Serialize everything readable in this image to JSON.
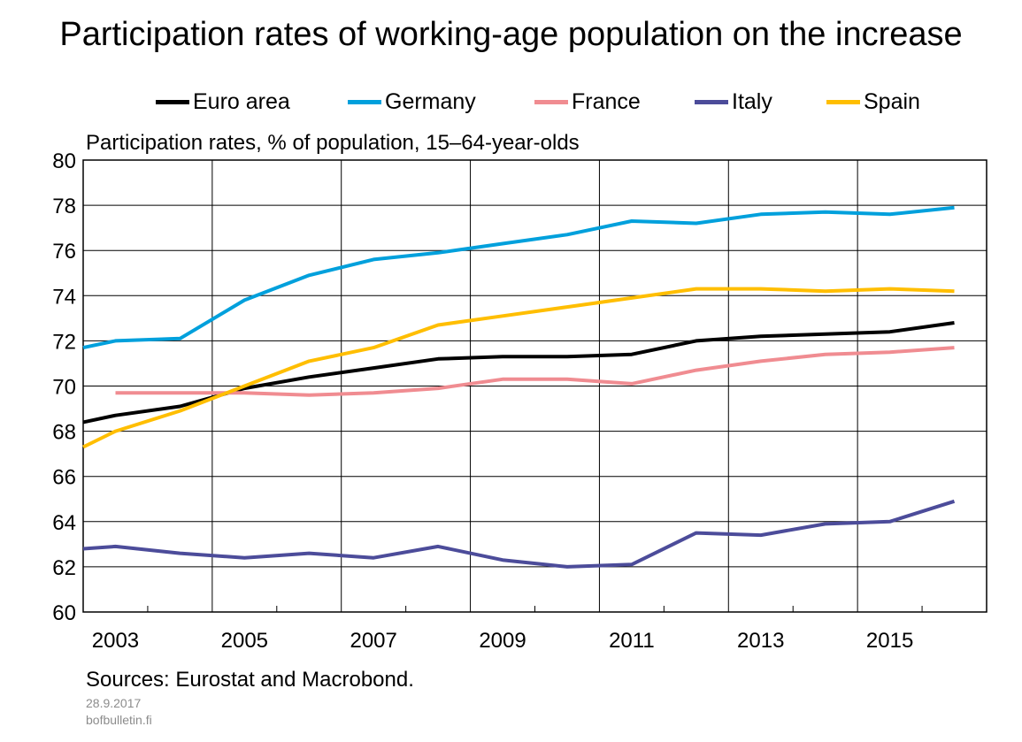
{
  "title": "Participation rates of working-age population on the increase",
  "subtitle": "Participation rates, % of population, 15–64-year-olds",
  "source": "Sources: Eurostat and Macrobond.",
  "date": "28.9.2017",
  "site": "bofbulletin.fi",
  "chart_data": {
    "type": "line",
    "x": [
      2002.5,
      2003,
      2004,
      2005,
      2006,
      2007,
      2008,
      2009,
      2010,
      2011,
      2012,
      2013,
      2014,
      2015,
      2016
    ],
    "xlim": [
      2002.5,
      2016.5
    ],
    "ylim": [
      60,
      80
    ],
    "yticks": [
      60,
      62,
      64,
      66,
      68,
      70,
      72,
      74,
      76,
      78,
      80
    ],
    "xtick_labels": [
      "2003",
      "2005",
      "2007",
      "2009",
      "2011",
      "2013",
      "2015"
    ],
    "grid": true,
    "legend_position": "top",
    "series": [
      {
        "name": "Euro area",
        "color": "#000000",
        "points": [
          [
            2002.5,
            68.4
          ],
          [
            2003,
            68.7
          ],
          [
            2004,
            69.1
          ],
          [
            2005,
            69.9
          ],
          [
            2006,
            70.4
          ],
          [
            2007,
            70.8
          ],
          [
            2008,
            71.2
          ],
          [
            2009,
            71.3
          ],
          [
            2010,
            71.3
          ],
          [
            2011,
            71.4
          ],
          [
            2012,
            72.0
          ],
          [
            2013,
            72.2
          ],
          [
            2014,
            72.3
          ],
          [
            2015,
            72.4
          ],
          [
            2016,
            72.8
          ]
        ]
      },
      {
        "name": "Germany",
        "color": "#00a0dc",
        "points": [
          [
            2002.5,
            71.7
          ],
          [
            2003,
            72.0
          ],
          [
            2004,
            72.1
          ],
          [
            2005,
            73.8
          ],
          [
            2006,
            74.9
          ],
          [
            2007,
            75.6
          ],
          [
            2008,
            75.9
          ],
          [
            2009,
            76.3
          ],
          [
            2010,
            76.7
          ],
          [
            2011,
            77.3
          ],
          [
            2012,
            77.2
          ],
          [
            2013,
            77.6
          ],
          [
            2014,
            77.7
          ],
          [
            2015,
            77.6
          ],
          [
            2016,
            77.9
          ]
        ]
      },
      {
        "name": "France",
        "color": "#f08c91",
        "points": [
          [
            2003,
            69.7
          ],
          [
            2004,
            69.7
          ],
          [
            2005,
            69.7
          ],
          [
            2006,
            69.6
          ],
          [
            2007,
            69.7
          ],
          [
            2008,
            69.9
          ],
          [
            2009,
            70.3
          ],
          [
            2010,
            70.3
          ],
          [
            2011,
            70.1
          ],
          [
            2012,
            70.7
          ],
          [
            2013,
            71.1
          ],
          [
            2014,
            71.4
          ],
          [
            2015,
            71.5
          ],
          [
            2016,
            71.7
          ]
        ]
      },
      {
        "name": "Italy",
        "color": "#4c4c9a",
        "points": [
          [
            2002.5,
            62.8
          ],
          [
            2003,
            62.9
          ],
          [
            2004,
            62.6
          ],
          [
            2005,
            62.4
          ],
          [
            2006,
            62.6
          ],
          [
            2007,
            62.4
          ],
          [
            2008,
            62.9
          ],
          [
            2009,
            62.3
          ],
          [
            2010,
            62.0
          ],
          [
            2011,
            62.1
          ],
          [
            2012,
            63.5
          ],
          [
            2013,
            63.4
          ],
          [
            2014,
            63.9
          ],
          [
            2015,
            64.0
          ],
          [
            2016,
            64.9
          ]
        ]
      },
      {
        "name": "Spain",
        "color": "#ffbe00",
        "points": [
          [
            2002.5,
            67.3
          ],
          [
            2003,
            68.0
          ],
          [
            2004,
            68.9
          ],
          [
            2005,
            70.0
          ],
          [
            2006,
            71.1
          ],
          [
            2007,
            71.7
          ],
          [
            2008,
            72.7
          ],
          [
            2009,
            73.1
          ],
          [
            2010,
            73.5
          ],
          [
            2011,
            73.9
          ],
          [
            2012,
            74.3
          ],
          [
            2013,
            74.3
          ],
          [
            2014,
            74.2
          ],
          [
            2015,
            74.3
          ],
          [
            2016,
            74.2
          ]
        ]
      }
    ]
  }
}
